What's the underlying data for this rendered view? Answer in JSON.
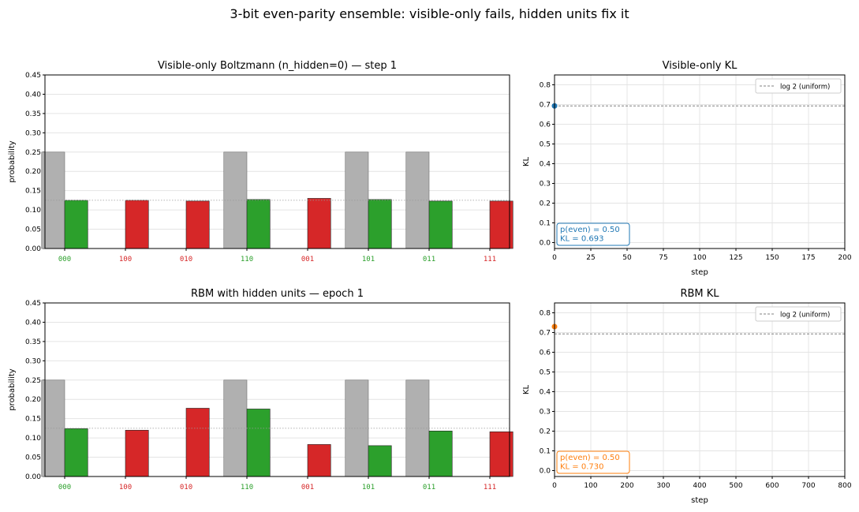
{
  "figure_title": "3-bit even-parity ensemble: visible-only fails, hidden units fix it",
  "colors": {
    "target": "#b0b0b0",
    "even": "#2ca02c",
    "odd": "#d62728",
    "visible_kl": "#1f77b4",
    "rbm_kl": "#ff7f0e",
    "reference": "#808080"
  },
  "chart_data": [
    {
      "type": "bar",
      "title": "Visible-only Boltzmann (n_hidden=0)  —  step 1",
      "ylabel": "probability",
      "xlabel": "",
      "ylim": [
        0,
        0.45
      ],
      "yticks": [
        "0.00",
        "0.05",
        "0.10",
        "0.15",
        "0.20",
        "0.25",
        "0.30",
        "0.35",
        "0.40",
        "0.45"
      ],
      "categories": [
        "000",
        "100",
        "010",
        "110",
        "001",
        "101",
        "011",
        "111"
      ],
      "category_parity": [
        "even",
        "odd",
        "odd",
        "even",
        "odd",
        "even",
        "even",
        "odd"
      ],
      "target": [
        0.25,
        0,
        0,
        0.25,
        0,
        0.25,
        0.25,
        0
      ],
      "model": [
        0.125,
        0.125,
        0.123,
        0.127,
        0.13,
        0.127,
        0.123,
        0.123
      ],
      "uniform_line": 0.125,
      "grid": "y"
    },
    {
      "type": "line",
      "title": "Visible-only KL",
      "xlabel": "step",
      "ylabel": "KL",
      "xlim": [
        0,
        200
      ],
      "ylim": [
        -0.03,
        0.85
      ],
      "xticks": [
        "0",
        "25",
        "50",
        "75",
        "100",
        "125",
        "150",
        "175",
        "200"
      ],
      "yticks": [
        "0.0",
        "0.1",
        "0.2",
        "0.3",
        "0.4",
        "0.5",
        "0.6",
        "0.7",
        "0.8"
      ],
      "reference": {
        "label": "log 2 (uniform)",
        "y": 0.693
      },
      "series": [
        {
          "x": [
            0
          ],
          "y": [
            0.693
          ]
        }
      ],
      "annotation": [
        "p(even) = 0.50",
        "KL = 0.693"
      ],
      "legend": "top-right",
      "grid": true
    },
    {
      "type": "bar",
      "title": "RBM with hidden units  —  epoch 1",
      "ylabel": "probability",
      "xlabel": "",
      "ylim": [
        0,
        0.45
      ],
      "yticks": [
        "0.00",
        "0.05",
        "0.10",
        "0.15",
        "0.20",
        "0.25",
        "0.30",
        "0.35",
        "0.40",
        "0.45"
      ],
      "categories": [
        "000",
        "100",
        "010",
        "110",
        "001",
        "101",
        "011",
        "111"
      ],
      "category_parity": [
        "even",
        "odd",
        "odd",
        "even",
        "odd",
        "even",
        "even",
        "odd"
      ],
      "target": [
        0.25,
        0,
        0,
        0.25,
        0,
        0.25,
        0.25,
        0
      ],
      "model": [
        0.124,
        0.12,
        0.177,
        0.175,
        0.083,
        0.08,
        0.118,
        0.116
      ],
      "uniform_line": 0.125,
      "grid": "y"
    },
    {
      "type": "line",
      "title": "RBM KL",
      "xlabel": "step",
      "ylabel": "KL",
      "xlim": [
        0,
        800
      ],
      "ylim": [
        -0.03,
        0.85
      ],
      "xticks": [
        "0",
        "100",
        "200",
        "300",
        "400",
        "500",
        "600",
        "700",
        "800"
      ],
      "yticks": [
        "0.0",
        "0.1",
        "0.2",
        "0.3",
        "0.4",
        "0.5",
        "0.6",
        "0.7",
        "0.8"
      ],
      "reference": {
        "label": "log 2 (uniform)",
        "y": 0.693
      },
      "series": [
        {
          "x": [
            0
          ],
          "y": [
            0.73
          ]
        }
      ],
      "annotation": [
        "p(even) = 0.50",
        "KL = 0.730"
      ],
      "legend": "top-right",
      "grid": true
    }
  ]
}
